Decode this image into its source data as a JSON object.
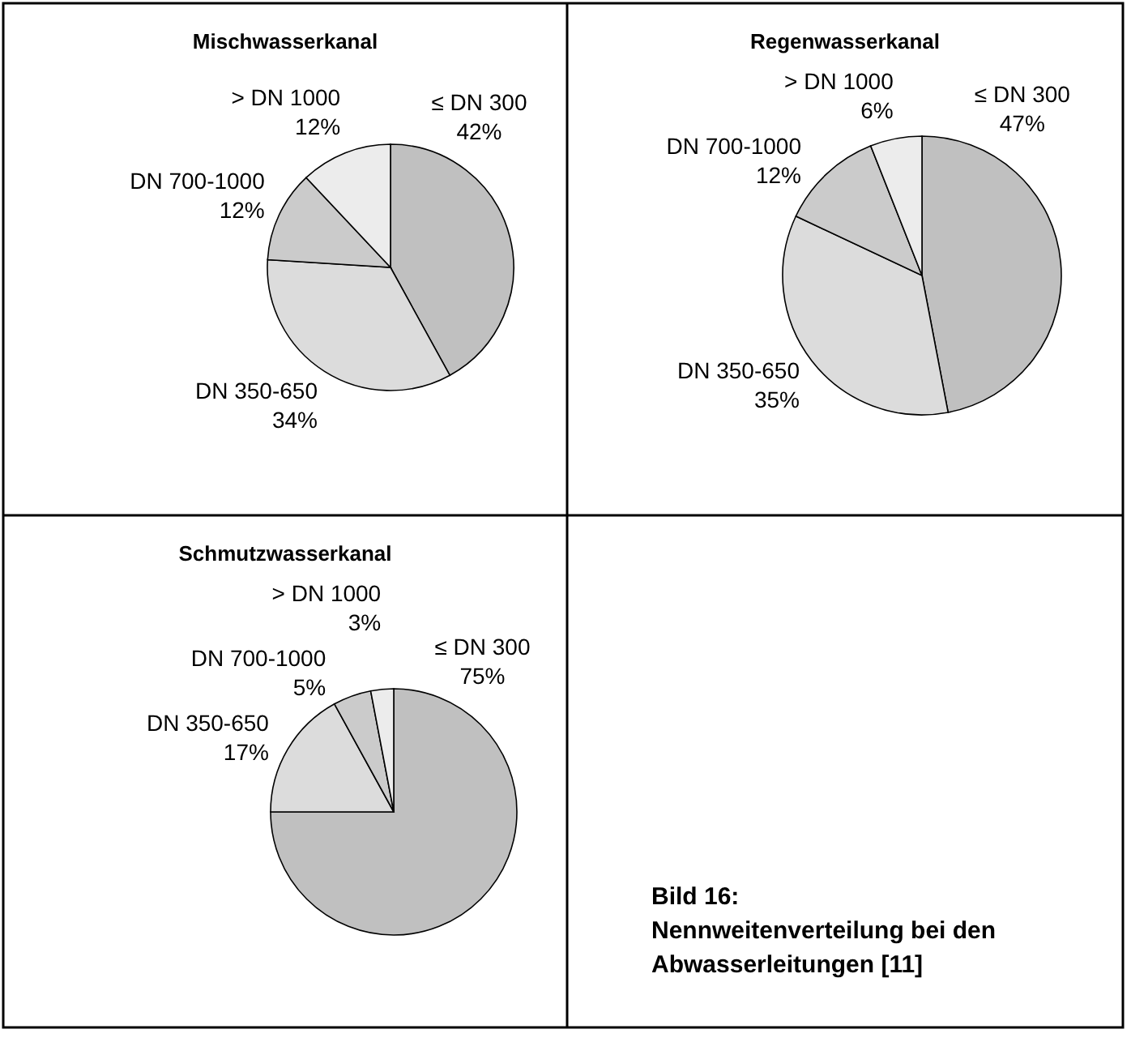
{
  "chart_data": [
    {
      "type": "pie",
      "title": "Mischwasserkanal",
      "categories": [
        "≤ DN 300",
        "DN 350-650",
        "DN 700-1000",
        "> DN 1000"
      ],
      "values": [
        42,
        34,
        12,
        12
      ],
      "value_labels": [
        "42%",
        "34%",
        "12%",
        "12%"
      ],
      "colors": [
        "#c0c0c0",
        "#dcdcdc",
        "#cbcbcb",
        "#ececec"
      ]
    },
    {
      "type": "pie",
      "title": "Regenwasserkanal",
      "categories": [
        "≤ DN 300",
        "DN 350-650",
        "DN 700-1000",
        "> DN 1000"
      ],
      "values": [
        47,
        35,
        12,
        6
      ],
      "value_labels": [
        "47%",
        "35%",
        "12%",
        "6%"
      ],
      "colors": [
        "#c0c0c0",
        "#dcdcdc",
        "#cbcbcb",
        "#ececec"
      ]
    },
    {
      "type": "pie",
      "title": "Schmutzwasserkanal",
      "categories": [
        "≤ DN 300",
        "DN 350-650",
        "DN 700-1000",
        "> DN 1000"
      ],
      "values": [
        75,
        17,
        5,
        3
      ],
      "value_labels": [
        "75%",
        "17%",
        "5%",
        "3%"
      ],
      "colors": [
        "#c0c0c0",
        "#dcdcdc",
        "#cbcbcb",
        "#ececec"
      ]
    },
    {
      "type": "other",
      "title": "Bild 16:",
      "subtitle": "Nennweitenverteilung bei den Abwasserleitungen [11]"
    }
  ]
}
